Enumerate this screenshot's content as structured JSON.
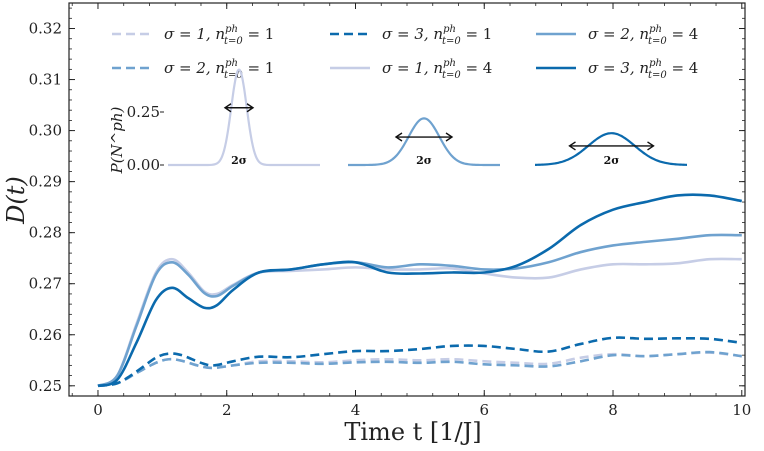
{
  "chart_data": {
    "type": "line",
    "xlabel": "Time t [1/J]",
    "ylabel": "D(t)",
    "xlim": [
      -0.45,
      10.05
    ],
    "ylim": [
      0.248,
      0.325
    ],
    "xticks": [
      0,
      2,
      4,
      6,
      8,
      10
    ],
    "xtick_labels": [
      "0",
      "2",
      "4",
      "6",
      "8",
      "10"
    ],
    "yticks": [
      0.25,
      0.26,
      0.27,
      0.28,
      0.29,
      0.3,
      0.31,
      0.32
    ],
    "ytick_labels": [
      "0.25",
      "0.26",
      "0.27",
      "0.28",
      "0.29",
      "0.30",
      "0.31",
      "0.32"
    ],
    "grid": false,
    "legend_position": "top",
    "series": [
      {
        "name": "σ = 1, n^ph_{t=0} = 1",
        "label_main": "σ = 1, n",
        "label_sup": "ph",
        "label_sub": "t=0",
        "label_tail": " = 1",
        "color": "#c6cde6",
        "dash": "dashed",
        "x": [
          0,
          0.3,
          0.6,
          0.9,
          1.1,
          1.3,
          1.6,
          1.8,
          2.1,
          2.5,
          3,
          3.5,
          4,
          4.5,
          5,
          5.5,
          6,
          6.5,
          7,
          7.5,
          8,
          8.5,
          9,
          9.5,
          10
        ],
        "y": [
          0.25,
          0.2505,
          0.2525,
          0.2545,
          0.2552,
          0.2549,
          0.2538,
          0.2535,
          0.254,
          0.2548,
          0.2548,
          0.2546,
          0.255,
          0.2552,
          0.255,
          0.2552,
          0.2548,
          0.2545,
          0.2543,
          0.2555,
          0.2562,
          0.2558,
          0.2562,
          0.2565,
          0.2558
        ]
      },
      {
        "name": "σ = 2, n^ph_{t=0} = 1",
        "label_main": "σ = 2, n",
        "label_sup": "ph",
        "label_sub": "t=0",
        "label_tail": " = 1",
        "color": "#6fa2cf",
        "dash": "dashed",
        "x": [
          0,
          0.3,
          0.6,
          0.9,
          1.1,
          1.3,
          1.6,
          1.8,
          2.1,
          2.5,
          3,
          3.5,
          4,
          4.5,
          5,
          5.5,
          6,
          6.5,
          7,
          7.5,
          8,
          8.5,
          9,
          9.5,
          10
        ],
        "y": [
          0.25,
          0.2505,
          0.2525,
          0.2545,
          0.2552,
          0.2549,
          0.2538,
          0.2535,
          0.254,
          0.2545,
          0.2545,
          0.2543,
          0.2546,
          0.2547,
          0.2545,
          0.2547,
          0.2542,
          0.254,
          0.2538,
          0.2548,
          0.256,
          0.2558,
          0.2562,
          0.2566,
          0.2558
        ]
      },
      {
        "name": "σ = 3, n^ph_{t=0} = 1",
        "label_main": "σ = 3, n",
        "label_sup": "ph",
        "label_sub": "t=0",
        "label_tail": " = 1",
        "color": "#0b6aad",
        "dash": "dashed",
        "x": [
          0,
          0.3,
          0.6,
          0.9,
          1.1,
          1.3,
          1.6,
          1.8,
          2.1,
          2.5,
          3,
          3.5,
          4,
          4.5,
          5,
          5.5,
          6,
          6.5,
          7,
          7.5,
          8,
          8.5,
          9,
          9.5,
          10
        ],
        "y": [
          0.25,
          0.2505,
          0.2528,
          0.2555,
          0.2563,
          0.256,
          0.2545,
          0.254,
          0.2548,
          0.2557,
          0.2556,
          0.2562,
          0.2568,
          0.2568,
          0.2572,
          0.2578,
          0.2578,
          0.2572,
          0.2567,
          0.2582,
          0.2594,
          0.2592,
          0.2593,
          0.2592,
          0.2584
        ]
      },
      {
        "name": "σ = 1, n^ph_{t=0} = 4",
        "label_main": "σ = 1, n",
        "label_sup": "ph",
        "label_sub": "t=0",
        "label_tail": " = 4",
        "color": "#c6cde6",
        "dash": "solid",
        "x": [
          0,
          0.3,
          0.6,
          0.9,
          1.15,
          1.4,
          1.65,
          1.85,
          2.1,
          2.5,
          3,
          3.5,
          4,
          4.5,
          5,
          5.5,
          6,
          6.5,
          7,
          7.5,
          8,
          8.5,
          9,
          9.5,
          10
        ],
        "y": [
          0.25,
          0.252,
          0.2622,
          0.2722,
          0.2748,
          0.2722,
          0.2685,
          0.268,
          0.2698,
          0.2722,
          0.2725,
          0.2728,
          0.2732,
          0.2728,
          0.2728,
          0.273,
          0.272,
          0.2712,
          0.2712,
          0.2728,
          0.2738,
          0.2738,
          0.274,
          0.2748,
          0.2748
        ]
      },
      {
        "name": "σ = 2, n^ph_{t=0} = 4",
        "label_main": "σ = 2, n",
        "label_sup": "ph",
        "label_sub": "t=0",
        "label_tail": " = 4",
        "color": "#6fa2cf",
        "dash": "solid",
        "x": [
          0,
          0.3,
          0.6,
          0.9,
          1.15,
          1.4,
          1.65,
          1.85,
          2.1,
          2.5,
          3,
          3.5,
          4,
          4.5,
          5,
          5.5,
          6,
          6.5,
          7,
          7.5,
          8,
          8.5,
          9,
          9.5,
          10
        ],
        "y": [
          0.25,
          0.252,
          0.2618,
          0.2718,
          0.2742,
          0.2718,
          0.2682,
          0.2676,
          0.2696,
          0.2722,
          0.2728,
          0.2738,
          0.2742,
          0.2732,
          0.2738,
          0.2735,
          0.2728,
          0.273,
          0.2742,
          0.2762,
          0.2775,
          0.2782,
          0.2788,
          0.2795,
          0.2795
        ]
      },
      {
        "name": "σ = 3, n^ph_{t=0} = 4",
        "label_main": "σ = 3, n",
        "label_sup": "ph",
        "label_sub": "t=0",
        "label_tail": " = 4",
        "color": "#0b6aad",
        "dash": "solid",
        "x": [
          0,
          0.3,
          0.6,
          0.9,
          1.15,
          1.4,
          1.65,
          1.85,
          2.1,
          2.5,
          3,
          3.5,
          4,
          4.5,
          5,
          5.5,
          6,
          6.5,
          7,
          7.5,
          8,
          8.5,
          9,
          9.5,
          10
        ],
        "y": [
          0.25,
          0.2512,
          0.2585,
          0.2668,
          0.2692,
          0.2672,
          0.2653,
          0.2658,
          0.2688,
          0.2722,
          0.2728,
          0.2738,
          0.2742,
          0.2722,
          0.272,
          0.2722,
          0.2722,
          0.2735,
          0.2768,
          0.2815,
          0.2845,
          0.286,
          0.2873,
          0.2873,
          0.2862
        ]
      }
    ],
    "inset": {
      "ylabel": "P(N^ph)",
      "ytick_labels": [
        "0.25",
        "0.00"
      ],
      "yticks": [
        0.25,
        0.0
      ],
      "ymax": 0.45,
      "width_label": "2σ",
      "distributions": [
        {
          "sigma": 1,
          "peak": 0.45,
          "color": "#c6cde6"
        },
        {
          "sigma": 2,
          "peak": 0.22,
          "color": "#6fa2cf"
        },
        {
          "sigma": 3,
          "peak": 0.15,
          "color": "#0b6aad"
        }
      ]
    }
  }
}
